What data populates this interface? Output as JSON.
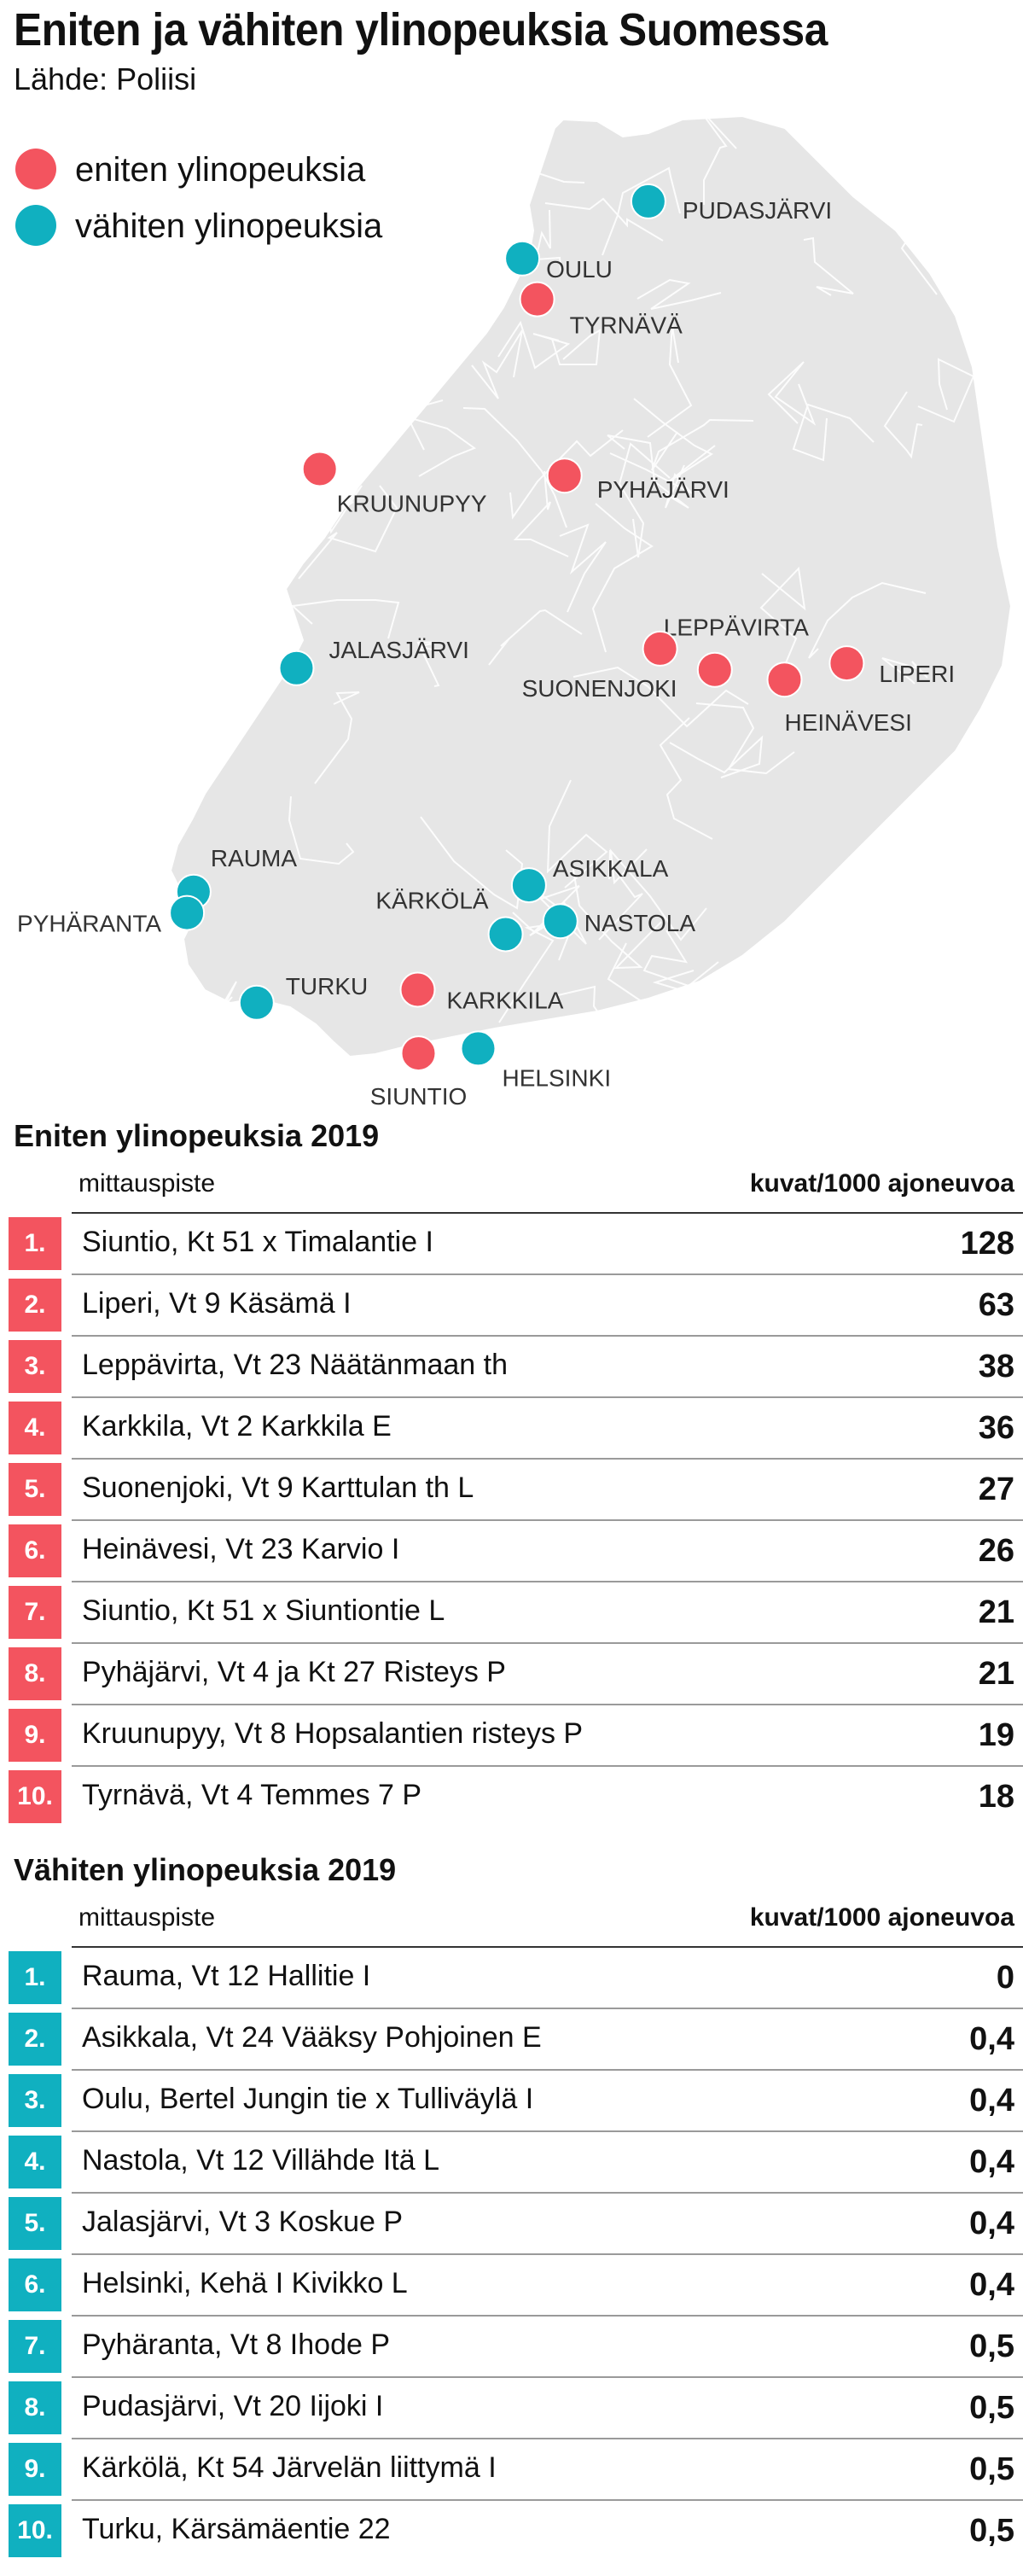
{
  "header": {
    "title": "Eniten ja vähiten ylinopeuksia Suomessa",
    "source": "Lähde: Poliisi"
  },
  "legend": {
    "most": "eniten ylinopeuksia",
    "least": "vähiten ylinopeuksia"
  },
  "colors": {
    "most": "#f3545f",
    "least": "#10b0c0",
    "land": "#e6e6e6",
    "border": "#ffffff"
  },
  "map": {
    "markers": [
      {
        "name": "PUDASJÄRVI",
        "type": "least",
        "lat": 65.36,
        "lon": 26.99
      },
      {
        "name": "OULU",
        "type": "least",
        "lat": 65.01,
        "lon": 25.47
      },
      {
        "name": "TYRNÄVÄ",
        "type": "most",
        "lat": 64.76,
        "lon": 25.65
      },
      {
        "name": "KRUUNUPYY",
        "type": "most",
        "lat": 63.72,
        "lon": 23.03
      },
      {
        "name": "PYHÄJÄRVI",
        "type": "most",
        "lat": 63.68,
        "lon": 25.98
      },
      {
        "name": "LEPPÄVIRTA",
        "type": "most",
        "lat": 62.49,
        "lon": 27.79
      },
      {
        "name": "SUONENJOKI",
        "type": "most",
        "lat": 62.62,
        "lon": 27.13
      },
      {
        "name": "HEINÄVESI",
        "type": "most",
        "lat": 62.43,
        "lon": 28.63
      },
      {
        "name": "LIPERI",
        "type": "most",
        "lat": 62.53,
        "lon": 29.38
      },
      {
        "name": "JALASJÄRVI",
        "type": "least",
        "lat": 62.5,
        "lon": 22.75
      },
      {
        "name": "RAUMA",
        "type": "least",
        "lat": 61.13,
        "lon": 21.51
      },
      {
        "name": "PYHÄRANTA",
        "type": "least",
        "lat": 61.0,
        "lon": 21.43
      },
      {
        "name": "ASIKKALA",
        "type": "least",
        "lat": 61.17,
        "lon": 25.55
      },
      {
        "name": "KÄRKÖLÄ",
        "type": "least",
        "lat": 60.87,
        "lon": 25.27
      },
      {
        "name": "NASTOLA",
        "type": "least",
        "lat": 60.95,
        "lon": 25.93
      },
      {
        "name": "TURKU",
        "type": "least",
        "lat": 60.45,
        "lon": 22.27
      },
      {
        "name": "KARKKILA",
        "type": "most",
        "lat": 60.53,
        "lon": 24.21
      },
      {
        "name": "SIUNTIO",
        "type": "most",
        "lat": 60.14,
        "lon": 24.22
      },
      {
        "name": "HELSINKI",
        "type": "least",
        "lat": 60.17,
        "lon": 24.94
      }
    ]
  },
  "tables": {
    "most": {
      "title": "Eniten ylinopeuksia 2019",
      "col_left": "mittauspiste",
      "col_right": "kuvat/1000 ajoneuvoa",
      "rows": [
        {
          "rank": "1.",
          "place": "Siuntio, Kt 51 x Timalantie I",
          "value": "128"
        },
        {
          "rank": "2.",
          "place": "Liperi, Vt 9 Käsämä I",
          "value": "63"
        },
        {
          "rank": "3.",
          "place": "Leppävirta, Vt 23 Näätänmaan th",
          "value": "38"
        },
        {
          "rank": "4.",
          "place": "Karkkila, Vt 2 Karkkila E",
          "value": "36"
        },
        {
          "rank": "5.",
          "place": "Suonenjoki, Vt 9 Karttulan th L",
          "value": "27"
        },
        {
          "rank": "6.",
          "place": "Heinävesi, Vt 23 Karvio I",
          "value": "26"
        },
        {
          "rank": "7.",
          "place": "Siuntio, Kt 51 x Siuntiontie L",
          "value": "21"
        },
        {
          "rank": "8.",
          "place": "Pyhäjärvi, Vt 4 ja Kt 27 Risteys P",
          "value": "21"
        },
        {
          "rank": "9.",
          "place": "Kruunupyy, Vt 8 Hopsalantien risteys P",
          "value": "19"
        },
        {
          "rank": "10.",
          "place": "Tyrnävä, Vt 4 Temmes 7 P",
          "value": "18"
        }
      ]
    },
    "least": {
      "title": "Vähiten ylinopeuksia 2019",
      "col_left": "mittauspiste",
      "col_right": "kuvat/1000 ajoneuvoa",
      "rows": [
        {
          "rank": "1.",
          "place": "Rauma, Vt 12 Hallitie I",
          "value": "0"
        },
        {
          "rank": "2.",
          "place": "Asikkala, Vt 24 Vääksy Pohjoinen E",
          "value": "0,4"
        },
        {
          "rank": "3.",
          "place": "Oulu, Bertel Jungin tie x Tulliväylä I",
          "value": "0,4"
        },
        {
          "rank": "4.",
          "place": "Nastola, Vt 12 Villähde Itä L",
          "value": "0,4"
        },
        {
          "rank": "5.",
          "place": "Jalasjärvi, Vt 3 Koskue P",
          "value": "0,4"
        },
        {
          "rank": "6.",
          "place": "Helsinki, Kehä I Kivikko L",
          "value": "0,4"
        },
        {
          "rank": "7.",
          "place": "Pyhäranta, Vt 8 Ihode P",
          "value": "0,5"
        },
        {
          "rank": "8.",
          "place": "Pudasjärvi, Vt 20 Iijoki I",
          "value": "0,5"
        },
        {
          "rank": "9.",
          "place": "Kärkölä, Kt 54 Järvelän liittymä I",
          "value": "0,5"
        },
        {
          "rank": "10.",
          "place": "Turku, Kärsämäentie 22",
          "value": "0,5"
        }
      ]
    }
  }
}
